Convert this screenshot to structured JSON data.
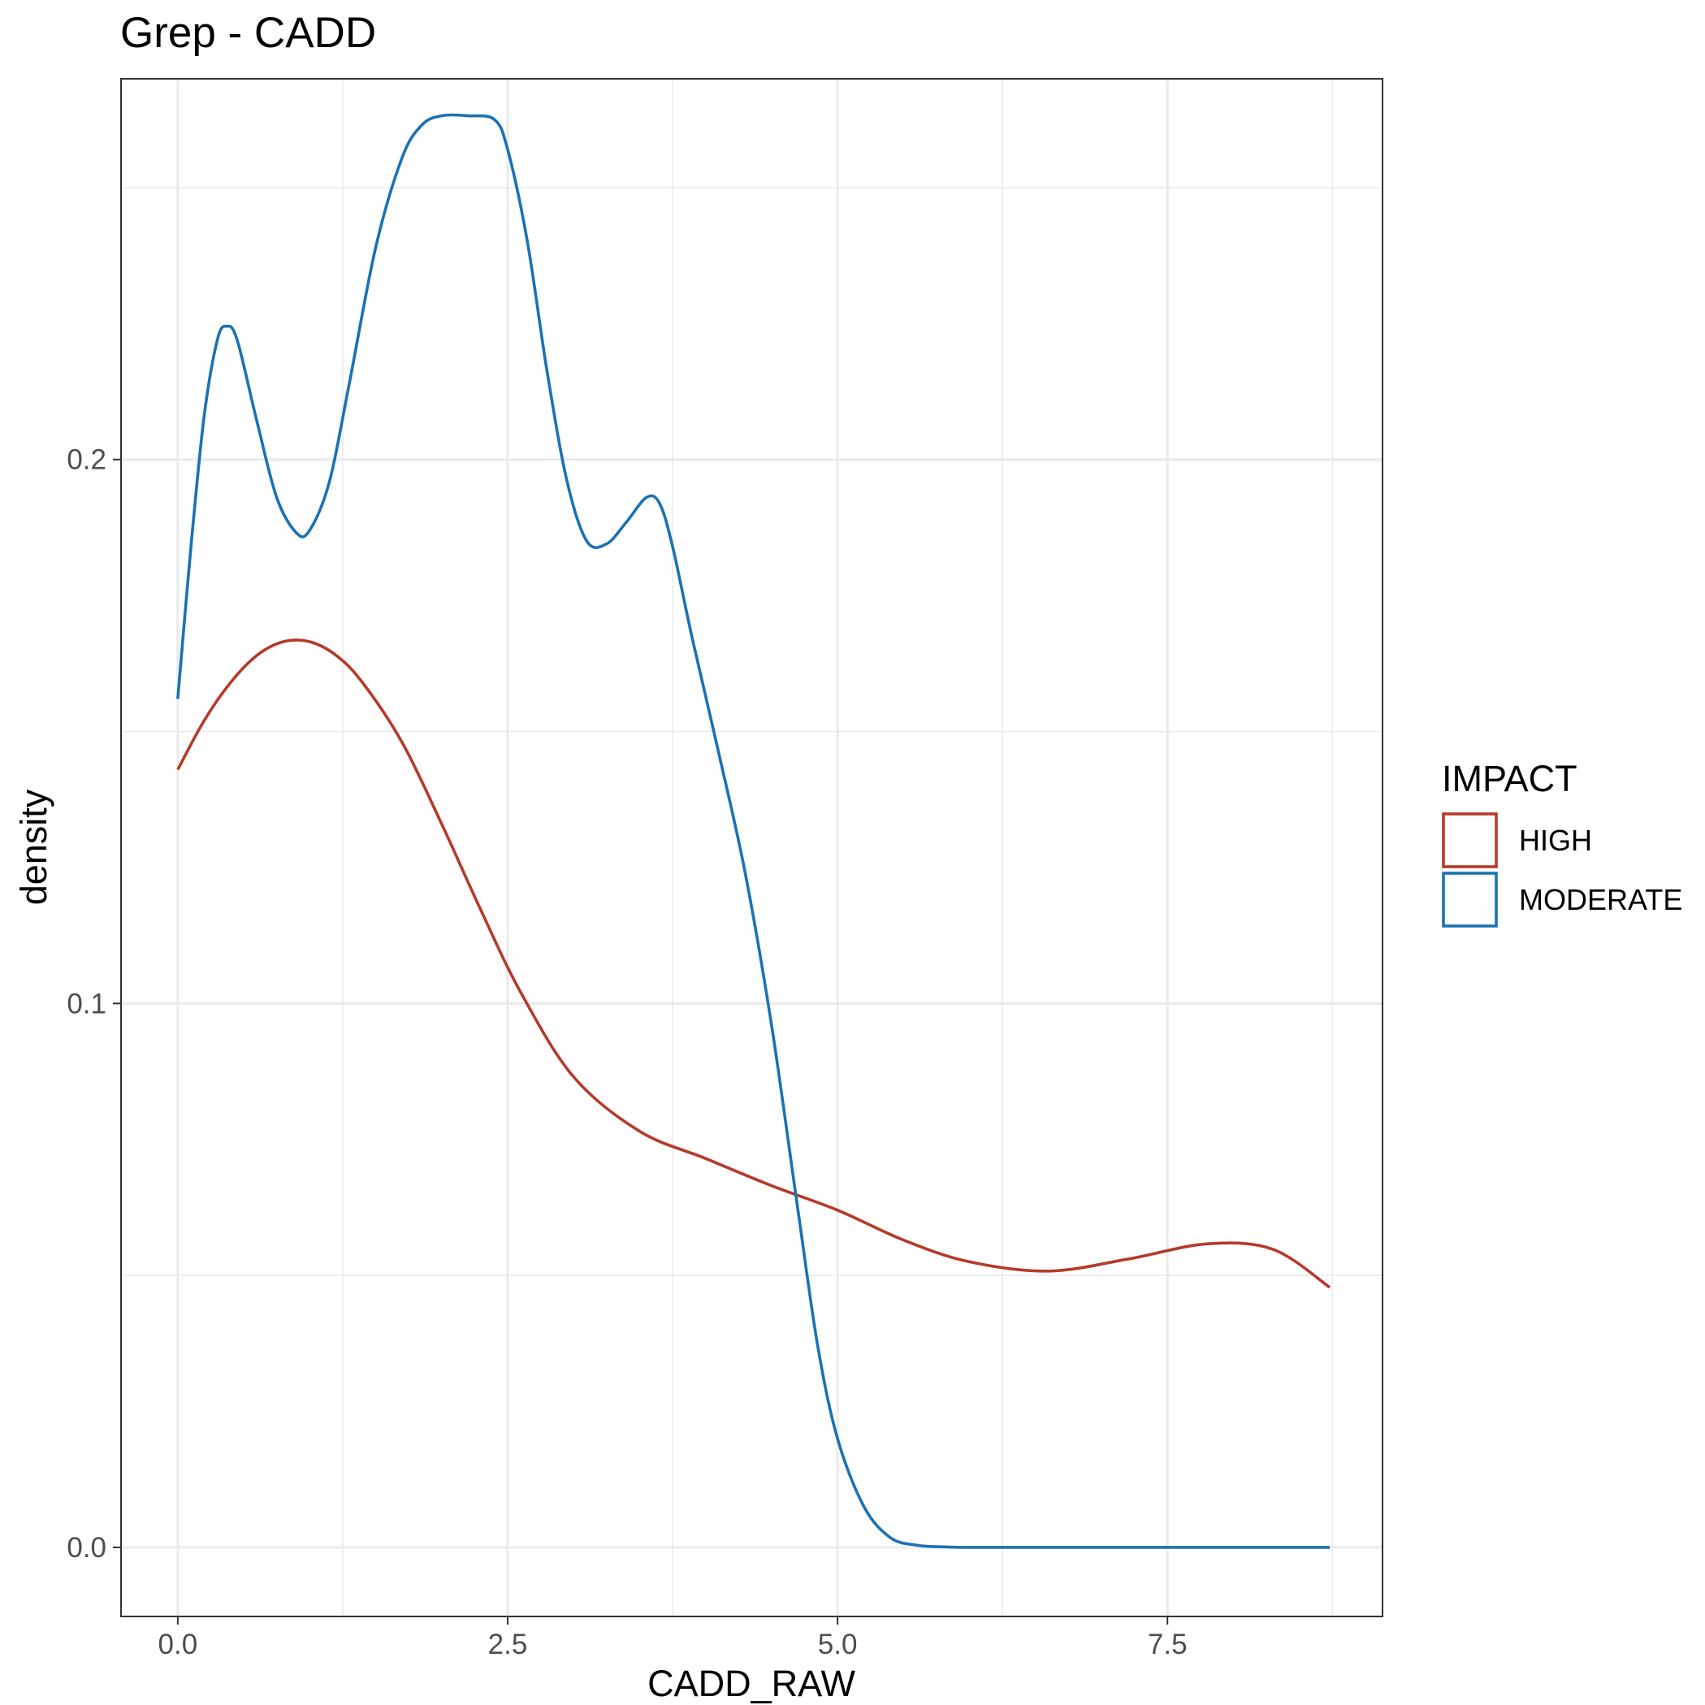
{
  "chart_data": {
    "type": "line",
    "title": "Grep - CADD",
    "xlabel": "CADD_RAW",
    "ylabel": "density",
    "xlim": [
      -0.43,
      9.13
    ],
    "ylim": [
      -0.0127,
      0.27
    ],
    "x_ticks": [
      0.0,
      2.5,
      5.0,
      7.5
    ],
    "x_tick_labels": [
      "0.0",
      "2.5",
      "5.0",
      "7.5"
    ],
    "y_ticks": [
      0.0,
      0.1,
      0.2
    ],
    "y_tick_labels": [
      "0.0",
      "0.1",
      "0.2"
    ],
    "x_minor_ticks": [
      1.25,
      3.75,
      6.25,
      8.75
    ],
    "y_minor_ticks": [
      0.05,
      0.15,
      0.25
    ],
    "grid": true,
    "legend": {
      "title": "IMPACT",
      "placement": "right"
    },
    "series": [
      {
        "name": "HIGH",
        "color": "#b63a2a",
        "x": [
          0.0,
          0.2,
          0.4,
          0.6,
          0.8,
          1.0,
          1.2,
          1.4,
          1.7,
          2.0,
          2.3,
          2.6,
          3.0,
          3.5,
          4.0,
          4.5,
          5.0,
          5.5,
          6.0,
          6.6,
          7.2,
          7.8,
          8.3,
          8.73
        ],
        "y": [
          0.143,
          0.152,
          0.159,
          0.164,
          0.1665,
          0.1665,
          0.164,
          0.159,
          0.148,
          0.133,
          0.117,
          0.102,
          0.0865,
          0.0765,
          0.0715,
          0.0665,
          0.062,
          0.0565,
          0.0525,
          0.0508,
          0.053,
          0.0558,
          0.0548,
          0.0478
        ]
      },
      {
        "name": "MODERATE",
        "color": "#1b72b3",
        "x": [
          0.0,
          0.1,
          0.2,
          0.3,
          0.37,
          0.45,
          0.6,
          0.75,
          0.9,
          1.0,
          1.15,
          1.3,
          1.5,
          1.7,
          1.85,
          2.0,
          2.2,
          2.4,
          2.5,
          2.65,
          2.8,
          2.95,
          3.1,
          3.25,
          3.4,
          3.55,
          3.65,
          3.75,
          3.9,
          4.1,
          4.3,
          4.5,
          4.7,
          4.85,
          5.0,
          5.2,
          5.4,
          5.6,
          5.8,
          6.0,
          6.5,
          7.0,
          7.5,
          8.0,
          8.5,
          8.73
        ],
        "y": [
          0.156,
          0.184,
          0.208,
          0.222,
          0.2245,
          0.222,
          0.207,
          0.193,
          0.1865,
          0.187,
          0.196,
          0.214,
          0.239,
          0.2555,
          0.2615,
          0.2632,
          0.2632,
          0.2625,
          0.257,
          0.24,
          0.216,
          0.196,
          0.185,
          0.1845,
          0.1885,
          0.193,
          0.192,
          0.184,
          0.167,
          0.146,
          0.124,
          0.096,
          0.062,
          0.037,
          0.02,
          0.0075,
          0.0018,
          0.0004,
          0.0001,
          0.0,
          0.0,
          0.0,
          0.0,
          0.0,
          0.0,
          0.0
        ]
      }
    ]
  }
}
